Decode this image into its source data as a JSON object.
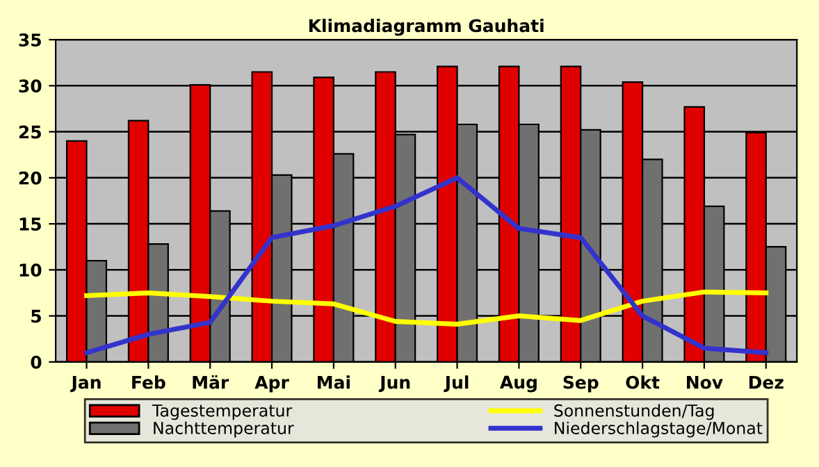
{
  "chart_data": {
    "type": "bar",
    "title": "Klimadiagramm Gauhati",
    "categories": [
      "Jan",
      "Feb",
      "Mär",
      "Apr",
      "Mai",
      "Jun",
      "Jul",
      "Aug",
      "Sep",
      "Okt",
      "Nov",
      "Dez"
    ],
    "series": [
      {
        "name": "Tagestemperatur",
        "color": "#e00000",
        "values": [
          24,
          26.2,
          30.1,
          31.5,
          30.9,
          31.5,
          32.1,
          32.1,
          32.1,
          30.4,
          27.7,
          24.9
        ]
      },
      {
        "name": "Nachttemperatur",
        "color": "#707070",
        "values": [
          11,
          12.8,
          16.4,
          20.3,
          22.6,
          24.7,
          25.8,
          25.8,
          25.2,
          22,
          16.9,
          12.5
        ]
      },
      {
        "name": "Sonnenstunden/Tag",
        "type": "line",
        "color": "#ffff00",
        "values": [
          7.2,
          7.5,
          7.1,
          6.6,
          6.3,
          4.4,
          4.1,
          5,
          4.5,
          6.6,
          7.6,
          7.5
        ]
      },
      {
        "name": "Niederschlagstage/Monat",
        "type": "line",
        "color": "#3333cc",
        "values": [
          1,
          3,
          4.3,
          13.5,
          14.8,
          16.9,
          20,
          14.5,
          13.5,
          5,
          1.5,
          1
        ]
      }
    ],
    "ylim": [
      0,
      35
    ],
    "yticks": [
      0,
      5,
      10,
      15,
      20,
      25,
      30,
      35
    ],
    "grid": "y",
    "legend": "bottom"
  }
}
